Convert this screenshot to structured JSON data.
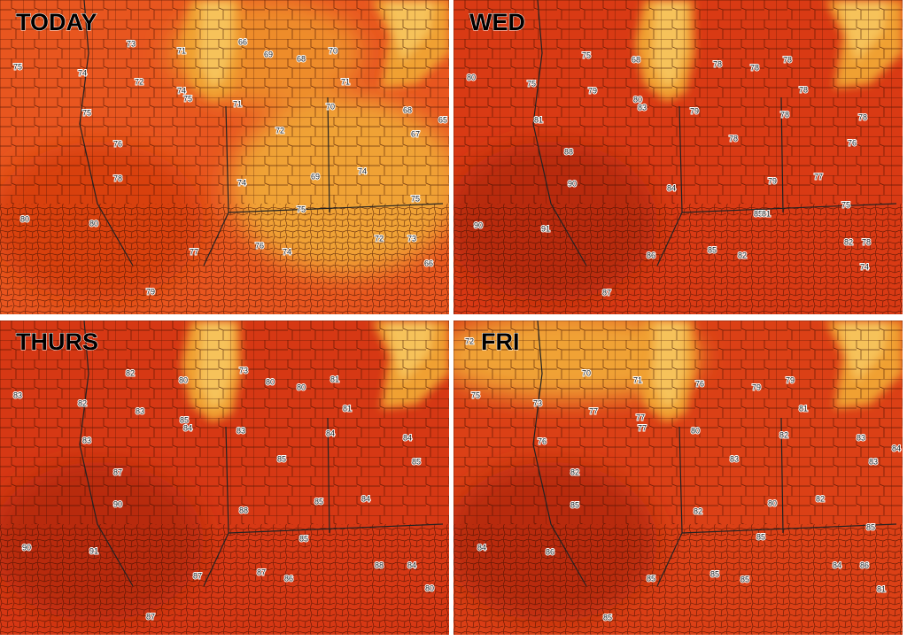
{
  "panels": [
    {
      "title": "TODAY",
      "temperatures": [
        75,
        73,
        74,
        72,
        75,
        74,
        75,
        71,
        66,
        69,
        68,
        70,
        71,
        71,
        70,
        72,
        76,
        78,
        74,
        69,
        74,
        80,
        80,
        77,
        76,
        74,
        75,
        72,
        73,
        75,
        66,
        67,
        65,
        68,
        79
      ]
    },
    {
      "title": "WED",
      "temperatures": [
        75,
        68,
        78,
        78,
        78,
        80,
        75,
        79,
        80,
        83,
        79,
        81,
        78,
        78,
        78,
        76,
        78,
        88,
        90,
        84,
        79,
        77,
        75,
        90,
        91,
        85,
        81,
        82,
        78,
        86,
        85,
        82,
        74,
        87
      ]
    },
    {
      "title": "THURS",
      "temperatures": [
        82,
        83,
        82,
        83,
        80,
        73,
        80,
        80,
        81,
        85,
        84,
        83,
        84,
        81,
        83,
        84,
        85,
        85,
        87,
        90,
        88,
        85,
        84,
        90,
        91,
        85,
        88,
        84,
        87,
        87,
        86,
        80,
        87
      ]
    },
    {
      "title": "FRI",
      "temperatures": [
        75,
        72,
        70,
        71,
        76,
        79,
        79,
        73,
        77,
        77,
        77,
        80,
        81,
        82,
        83,
        84,
        83,
        76,
        83,
        82,
        85,
        82,
        80,
        82,
        85,
        84,
        86,
        85,
        84,
        86,
        85,
        85,
        85,
        81,
        85
      ]
    }
  ]
}
